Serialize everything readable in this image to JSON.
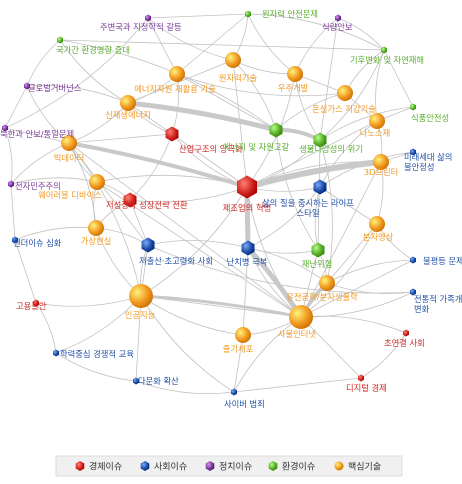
{
  "categories": {
    "econ": {
      "label": "경제이슈",
      "color": "#d0261f"
    },
    "soc": {
      "label": "사회이슈",
      "color": "#1f4ea6"
    },
    "pol": {
      "label": "정치이슈",
      "color": "#7b3a99"
    },
    "env": {
      "label": "환경이슈",
      "color": "#5aae2c"
    },
    "tech": {
      "label": "핵심기술",
      "color": "#f29a22"
    }
  },
  "legend_order": [
    "econ",
    "soc",
    "pol",
    "env",
    "tech"
  ],
  "nodes": [
    {
      "id": "n_nuclear_safety",
      "label": "원자력 안전문제",
      "cat": "env",
      "size": "s"
    },
    {
      "id": "n_neighbor",
      "label": "주변국과 지정학적 갈등",
      "cat": "pol",
      "size": "s"
    },
    {
      "id": "n_food_security",
      "label": "식량안보",
      "cat": "pol",
      "size": "s"
    },
    {
      "id": "n_intl_env",
      "label": "국가간 환경영향 증대",
      "cat": "env",
      "size": "s"
    },
    {
      "id": "n_climate",
      "label": "기후변화 및 자연재해",
      "cat": "env",
      "size": "s"
    },
    {
      "id": "n_global_gov",
      "label": "글로벌거버넌스",
      "cat": "pol",
      "size": "s"
    },
    {
      "id": "n_nuclear_tech",
      "label": "원자력기술",
      "cat": "tech",
      "size": "m"
    },
    {
      "id": "n_energy_recycle",
      "label": "에너지자원 재활용 기술",
      "cat": "tech",
      "size": "m"
    },
    {
      "id": "n_space",
      "label": "우주개발",
      "cat": "tech",
      "size": "m"
    },
    {
      "id": "n_greenhouse",
      "label": "온실가스 저감기술",
      "cat": "tech",
      "size": "m"
    },
    {
      "id": "n_food_safety",
      "label": "식품안전성",
      "cat": "env",
      "size": "s"
    },
    {
      "id": "n_renewable",
      "label": "신재생에너지",
      "cat": "tech",
      "size": "m"
    },
    {
      "id": "n_nano",
      "label": "나노소재",
      "cat": "tech",
      "size": "m"
    },
    {
      "id": "n_nk",
      "label": "북한과 안보/통일문제",
      "cat": "pol",
      "size": "s"
    },
    {
      "id": "n_polarize",
      "label": "산업구조의 양극화",
      "cat": "econ",
      "size": "m"
    },
    {
      "id": "n_energy_deplete",
      "label": "에너지 및 자원고갈",
      "cat": "env",
      "size": "m"
    },
    {
      "id": "n_biodiv",
      "label": "생물다양성의 위기",
      "cat": "env",
      "size": "m"
    },
    {
      "id": "n_bigdata",
      "label": "빅데이터",
      "cat": "tech",
      "size": "m"
    },
    {
      "id": "n_future_anxiety",
      "label": "미래세대 삶의 불안정성",
      "cat": "soc",
      "size": "s"
    },
    {
      "id": "n_epolitics",
      "label": "전자민주주의",
      "cat": "pol",
      "size": "s"
    },
    {
      "id": "n_3dprint",
      "label": "3D프린터",
      "cat": "tech",
      "size": "m"
    },
    {
      "id": "n_wearable",
      "label": "웨어러블 디바이스",
      "cat": "tech",
      "size": "m"
    },
    {
      "id": "n_mfg",
      "label": "제조업의 혁명",
      "cat": "econ",
      "size": "l"
    },
    {
      "id": "n_quality_life",
      "label": "삶의 질을 중시하는 라이프 스타일",
      "cat": "soc",
      "size": "m"
    },
    {
      "id": "n_low_growth",
      "label": "저성장과 성장전략 전환",
      "cat": "econ",
      "size": "m"
    },
    {
      "id": "n_gender",
      "label": "젠더이슈 심화",
      "cat": "soc",
      "size": "s"
    },
    {
      "id": "n_vr",
      "label": "가상현실",
      "cat": "tech",
      "size": "m"
    },
    {
      "id": "n_molecular",
      "label": "분자영상",
      "cat": "tech",
      "size": "m"
    },
    {
      "id": "n_inequality",
      "label": "불평등 문제",
      "cat": "soc",
      "size": "s"
    },
    {
      "id": "n_lowbirth",
      "label": "저출산·초고령화 사회",
      "cat": "soc",
      "size": "m"
    },
    {
      "id": "n_incurable",
      "label": "난치병 극복",
      "cat": "soc",
      "size": "m"
    },
    {
      "id": "n_disaster",
      "label": "재난위험",
      "cat": "env",
      "size": "m"
    },
    {
      "id": "n_employment",
      "label": "고용불안",
      "cat": "econ",
      "size": "s"
    },
    {
      "id": "n_genetic",
      "label": "유전공학/분자생물학",
      "cat": "tech",
      "size": "m"
    },
    {
      "id": "n_family",
      "label": "전통적 가족개념 변화",
      "cat": "soc",
      "size": "s"
    },
    {
      "id": "n_ai",
      "label": "인공지능",
      "cat": "tech",
      "size": "l"
    },
    {
      "id": "n_iot",
      "label": "사물인터넷",
      "cat": "tech",
      "size": "l"
    },
    {
      "id": "n_stemcell",
      "label": "줄기세포",
      "cat": "tech",
      "size": "m"
    },
    {
      "id": "n_education",
      "label": "학력중심 경쟁적 교육",
      "cat": "soc",
      "size": "s"
    },
    {
      "id": "n_hyperconnect",
      "label": "초연결 사회",
      "cat": "econ",
      "size": "s"
    },
    {
      "id": "n_multicultural",
      "label": "다문화 확산",
      "cat": "soc",
      "size": "s"
    },
    {
      "id": "n_digital_econ",
      "label": "디지털 경제",
      "cat": "econ",
      "size": "s"
    },
    {
      "id": "n_cybercrime",
      "label": "사이버 범죄",
      "cat": "soc",
      "size": "s"
    }
  ]
}
